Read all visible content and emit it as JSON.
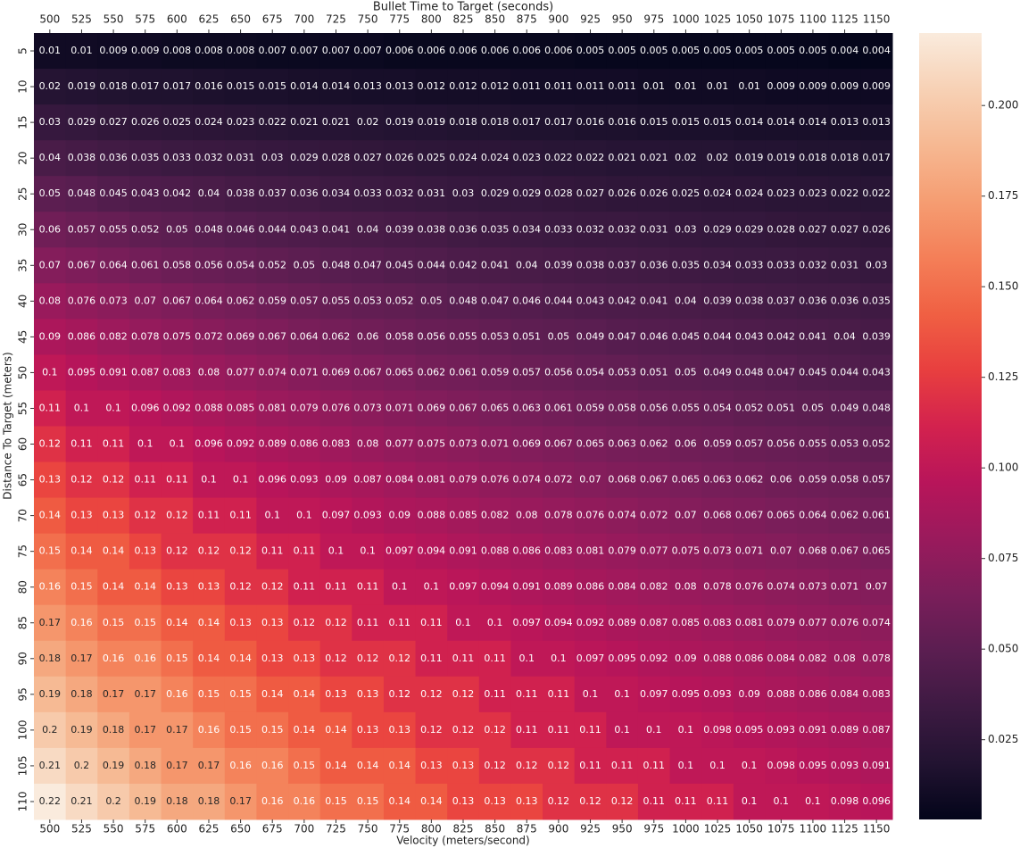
{
  "chart_data": {
    "type": "heatmap",
    "title": "Bullet Time to Target (seconds)",
    "xlabel": "Velocity (meters/second)",
    "ylabel": "Distance To Target (meters)",
    "x": [
      500,
      525,
      550,
      575,
      600,
      625,
      650,
      675,
      700,
      725,
      750,
      775,
      800,
      825,
      850,
      875,
      900,
      925,
      950,
      975,
      1000,
      1025,
      1050,
      1075,
      1100,
      1125,
      1150
    ],
    "y": [
      5,
      10,
      15,
      20,
      25,
      30,
      35,
      40,
      45,
      50,
      55,
      60,
      65,
      70,
      75,
      80,
      85,
      90,
      95,
      100,
      105,
      110
    ],
    "values": [
      [
        0.01,
        0.01,
        0.009,
        0.009,
        0.008,
        0.008,
        0.008,
        0.007,
        0.007,
        0.007,
        0.007,
        0.006,
        0.006,
        0.006,
        0.006,
        0.006,
        0.006,
        0.005,
        0.005,
        0.005,
        0.005,
        0.005,
        0.005,
        0.005,
        0.005,
        0.004,
        0.004
      ],
      [
        0.02,
        0.019,
        0.018,
        0.017,
        0.017,
        0.016,
        0.015,
        0.015,
        0.014,
        0.014,
        0.013,
        0.013,
        0.012,
        0.012,
        0.012,
        0.011,
        0.011,
        0.011,
        0.011,
        0.01,
        0.01,
        0.01,
        0.01,
        0.009,
        0.009,
        0.009,
        0.009
      ],
      [
        0.03,
        0.029,
        0.027,
        0.026,
        0.025,
        0.024,
        0.023,
        0.022,
        0.021,
        0.021,
        0.02,
        0.019,
        0.019,
        0.018,
        0.018,
        0.017,
        0.017,
        0.016,
        0.016,
        0.015,
        0.015,
        0.015,
        0.014,
        0.014,
        0.014,
        0.013,
        0.013
      ],
      [
        0.04,
        0.038,
        0.036,
        0.035,
        0.033,
        0.032,
        0.031,
        0.03,
        0.029,
        0.028,
        0.027,
        0.026,
        0.025,
        0.024,
        0.024,
        0.023,
        0.022,
        0.022,
        0.021,
        0.021,
        0.02,
        0.02,
        0.019,
        0.019,
        0.018,
        0.018,
        0.017
      ],
      [
        0.05,
        0.048,
        0.045,
        0.043,
        0.042,
        0.04,
        0.038,
        0.037,
        0.036,
        0.034,
        0.033,
        0.032,
        0.031,
        0.03,
        0.029,
        0.029,
        0.028,
        0.027,
        0.026,
        0.026,
        0.025,
        0.024,
        0.024,
        0.023,
        0.023,
        0.022,
        0.022
      ],
      [
        0.06,
        0.057,
        0.055,
        0.052,
        0.05,
        0.048,
        0.046,
        0.044,
        0.043,
        0.041,
        0.04,
        0.039,
        0.038,
        0.036,
        0.035,
        0.034,
        0.033,
        0.032,
        0.032,
        0.031,
        0.03,
        0.029,
        0.029,
        0.028,
        0.027,
        0.027,
        0.026
      ],
      [
        0.07,
        0.067,
        0.064,
        0.061,
        0.058,
        0.056,
        0.054,
        0.052,
        0.05,
        0.048,
        0.047,
        0.045,
        0.044,
        0.042,
        0.041,
        0.04,
        0.039,
        0.038,
        0.037,
        0.036,
        0.035,
        0.034,
        0.033,
        0.033,
        0.032,
        0.031,
        0.03
      ],
      [
        0.08,
        0.076,
        0.073,
        0.07,
        0.067,
        0.064,
        0.062,
        0.059,
        0.057,
        0.055,
        0.053,
        0.052,
        0.05,
        0.048,
        0.047,
        0.046,
        0.044,
        0.043,
        0.042,
        0.041,
        0.04,
        0.039,
        0.038,
        0.037,
        0.036,
        0.036,
        0.035
      ],
      [
        0.09,
        0.086,
        0.082,
        0.078,
        0.075,
        0.072,
        0.069,
        0.067,
        0.064,
        0.062,
        0.06,
        0.058,
        0.056,
        0.055,
        0.053,
        0.051,
        0.05,
        0.049,
        0.047,
        0.046,
        0.045,
        0.044,
        0.043,
        0.042,
        0.041,
        0.04,
        0.039
      ],
      [
        0.1,
        0.095,
        0.091,
        0.087,
        0.083,
        0.08,
        0.077,
        0.074,
        0.071,
        0.069,
        0.067,
        0.065,
        0.062,
        0.061,
        0.059,
        0.057,
        0.056,
        0.054,
        0.053,
        0.051,
        0.05,
        0.049,
        0.048,
        0.047,
        0.045,
        0.044,
        0.043
      ],
      [
        0.11,
        0.1,
        0.1,
        0.096,
        0.092,
        0.088,
        0.085,
        0.081,
        0.079,
        0.076,
        0.073,
        0.071,
        0.069,
        0.067,
        0.065,
        0.063,
        0.061,
        0.059,
        0.058,
        0.056,
        0.055,
        0.054,
        0.052,
        0.051,
        0.05,
        0.049,
        0.048
      ],
      [
        0.12,
        0.11,
        0.11,
        0.1,
        0.1,
        0.096,
        0.092,
        0.089,
        0.086,
        0.083,
        0.08,
        0.077,
        0.075,
        0.073,
        0.071,
        0.069,
        0.067,
        0.065,
        0.063,
        0.062,
        0.06,
        0.059,
        0.057,
        0.056,
        0.055,
        0.053,
        0.052
      ],
      [
        0.13,
        0.12,
        0.12,
        0.11,
        0.11,
        0.1,
        0.1,
        0.096,
        0.093,
        0.09,
        0.087,
        0.084,
        0.081,
        0.079,
        0.076,
        0.074,
        0.072,
        0.07,
        0.068,
        0.067,
        0.065,
        0.063,
        0.062,
        0.06,
        0.059,
        0.058,
        0.057
      ],
      [
        0.14,
        0.13,
        0.13,
        0.12,
        0.12,
        0.11,
        0.11,
        0.1,
        0.1,
        0.097,
        0.093,
        0.09,
        0.088,
        0.085,
        0.082,
        0.08,
        0.078,
        0.076,
        0.074,
        0.072,
        0.07,
        0.068,
        0.067,
        0.065,
        0.064,
        0.062,
        0.061
      ],
      [
        0.15,
        0.14,
        0.14,
        0.13,
        0.12,
        0.12,
        0.12,
        0.11,
        0.11,
        0.1,
        0.1,
        0.097,
        0.094,
        0.091,
        0.088,
        0.086,
        0.083,
        0.081,
        0.079,
        0.077,
        0.075,
        0.073,
        0.071,
        0.07,
        0.068,
        0.067,
        0.065
      ],
      [
        0.16,
        0.15,
        0.14,
        0.14,
        0.13,
        0.13,
        0.12,
        0.12,
        0.11,
        0.11,
        0.11,
        0.1,
        0.1,
        0.097,
        0.094,
        0.091,
        0.089,
        0.086,
        0.084,
        0.082,
        0.08,
        0.078,
        0.076,
        0.074,
        0.073,
        0.071,
        0.07
      ],
      [
        0.17,
        0.16,
        0.15,
        0.15,
        0.14,
        0.14,
        0.13,
        0.13,
        0.12,
        0.12,
        0.11,
        0.11,
        0.11,
        0.1,
        0.1,
        0.097,
        0.094,
        0.092,
        0.089,
        0.087,
        0.085,
        0.083,
        0.081,
        0.079,
        0.077,
        0.076,
        0.074
      ],
      [
        0.18,
        0.17,
        0.16,
        0.16,
        0.15,
        0.14,
        0.14,
        0.13,
        0.13,
        0.12,
        0.12,
        0.12,
        0.11,
        0.11,
        0.11,
        0.1,
        0.1,
        0.097,
        0.095,
        0.092,
        0.09,
        0.088,
        0.086,
        0.084,
        0.082,
        0.08,
        0.078
      ],
      [
        0.19,
        0.18,
        0.17,
        0.17,
        0.16,
        0.15,
        0.15,
        0.14,
        0.14,
        0.13,
        0.13,
        0.12,
        0.12,
        0.12,
        0.11,
        0.11,
        0.11,
        0.1,
        0.1,
        0.097,
        0.095,
        0.093,
        0.09,
        0.088,
        0.086,
        0.084,
        0.083
      ],
      [
        0.2,
        0.19,
        0.18,
        0.17,
        0.17,
        0.16,
        0.15,
        0.15,
        0.14,
        0.14,
        0.13,
        0.13,
        0.12,
        0.12,
        0.12,
        0.11,
        0.11,
        0.11,
        0.1,
        0.1,
        0.1,
        0.098,
        0.095,
        0.093,
        0.091,
        0.089,
        0.087
      ],
      [
        0.21,
        0.2,
        0.19,
        0.18,
        0.17,
        0.17,
        0.16,
        0.16,
        0.15,
        0.14,
        0.14,
        0.14,
        0.13,
        0.13,
        0.12,
        0.12,
        0.12,
        0.11,
        0.11,
        0.11,
        0.1,
        0.1,
        0.1,
        0.098,
        0.095,
        0.093,
        0.091
      ],
      [
        0.22,
        0.21,
        0.2,
        0.19,
        0.18,
        0.18,
        0.17,
        0.16,
        0.16,
        0.15,
        0.15,
        0.14,
        0.14,
        0.13,
        0.13,
        0.13,
        0.12,
        0.12,
        0.12,
        0.11,
        0.11,
        0.11,
        0.1,
        0.1,
        0.1,
        0.098,
        0.096
      ]
    ],
    "zlim": [
      0.003,
      0.22
    ],
    "zticks": [
      0.025,
      {
        "value": 0.05,
        "label": "0.050"
      },
      0.075,
      {
        "value": 0.1,
        "label": "0.100"
      },
      0.125,
      {
        "value": 0.15,
        "label": "0.150"
      },
      0.175,
      {
        "value": 0.2,
        "label": "0.200"
      }
    ],
    "colorscale": [
      "#03051a",
      "#221331",
      "#3d1a42",
      "#5b1e51",
      "#7a1e5a",
      "#9a1a5c",
      "#b8155a",
      "#d3224e",
      "#e83f3f",
      "#f06043",
      "#f47f58",
      "#f59d72",
      "#f6b892",
      "#f7d1b5",
      "#faebdd"
    ]
  }
}
